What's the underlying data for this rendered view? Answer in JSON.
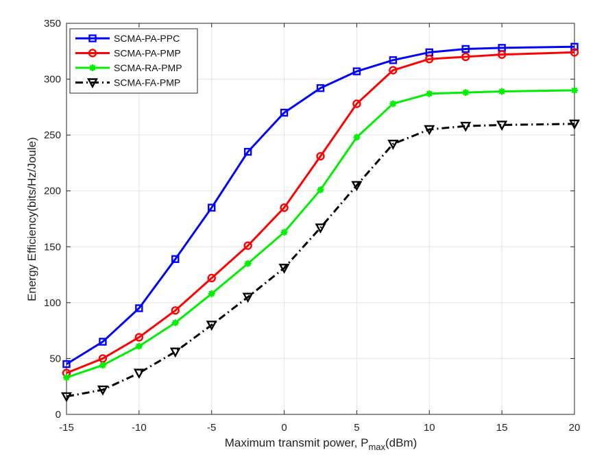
{
  "chart_data": {
    "type": "line",
    "title": "",
    "xlabel": "Maximum transmit power, P",
    "xlabel_sub": "max",
    "xlabel_unit": "(dBm)",
    "ylabel": "Energy Efficiency(bits/Hz/Joule)",
    "xlim": [
      -15,
      20
    ],
    "ylim": [
      0,
      350
    ],
    "xticks": [
      -15,
      -10,
      -5,
      0,
      5,
      10,
      15,
      20
    ],
    "yticks": [
      0,
      50,
      100,
      150,
      200,
      250,
      300,
      350
    ],
    "grid": true,
    "legend_position": "top-left",
    "x": [
      -15,
      -12.5,
      -10,
      -7.5,
      -5,
      -2.5,
      0,
      2.5,
      5,
      7.5,
      10,
      12.5,
      15,
      20
    ],
    "series": [
      {
        "name": "SCMA-PA-PPC",
        "color": "#0000ff",
        "marker": "square",
        "dash": "solid",
        "values": [
          45,
          65,
          95,
          139,
          185,
          235,
          270,
          292,
          307,
          317,
          324,
          327,
          328,
          329
        ]
      },
      {
        "name": "SCMA-PA-PMP",
        "color": "#ff0000",
        "marker": "circle",
        "dash": "solid",
        "values": [
          37,
          50,
          69,
          93,
          122,
          151,
          185,
          231,
          278,
          308,
          318,
          320,
          322,
          324
        ]
      },
      {
        "name": "SCMA-RA-PMP",
        "color": "#00ee00",
        "marker": "star",
        "dash": "solid",
        "values": [
          33,
          44,
          61,
          82,
          108,
          135,
          163,
          201,
          248,
          278,
          287,
          288,
          289,
          290
        ]
      },
      {
        "name": "SCMA-FA-PMP",
        "color": "#000000",
        "marker": "triangle-down",
        "dash": "dashdot",
        "values": [
          16,
          22,
          37,
          56,
          80,
          105,
          131,
          167,
          205,
          242,
          255,
          258,
          259,
          260
        ]
      }
    ]
  }
}
